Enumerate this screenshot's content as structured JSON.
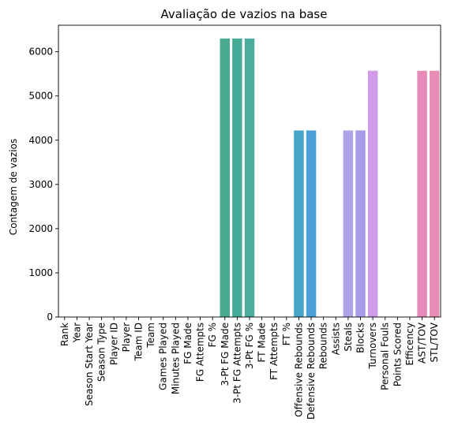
{
  "chart_data": {
    "type": "bar",
    "title": "Avaliação de vazios na base",
    "xlabel": "",
    "ylabel": "Contagem de vazios",
    "ylim": [
      0,
      6600
    ],
    "yticks": [
      0,
      1000,
      2000,
      3000,
      4000,
      5000,
      6000
    ],
    "grid": false,
    "legend": "none",
    "categories": [
      "Rank",
      "Year",
      "Season Start Year",
      "Season Type",
      "Player ID",
      "Player",
      "Team ID",
      "Team",
      "Games Played",
      "Minutes Played",
      "FG Made",
      "FG Attempts",
      "FG %",
      "3-Pt FG Made",
      "3-Pt FG Attempts",
      "3-Pt FG %",
      "FT Made",
      "FT Attempts",
      "FT %",
      "Offensive Rebounds",
      "Defensive Rebounds",
      "Rebounds",
      "Assists",
      "Steals",
      "Blocks",
      "Turnovers",
      "Personal Fouls",
      "Points Scored",
      "Efficency",
      "AST/TOV",
      "STL/TOV"
    ],
    "values": [
      0,
      0,
      0,
      0,
      0,
      0,
      0,
      0,
      0,
      0,
      0,
      0,
      0,
      6300,
      6300,
      6300,
      0,
      0,
      0,
      4220,
      4220,
      0,
      0,
      4220,
      4220,
      5570,
      0,
      0,
      0,
      5570,
      5570
    ],
    "colors": [
      "#f77189",
      "#f7754f",
      "#e1822f",
      "#cc8e32",
      "#bb9832",
      "#aa9e32",
      "#97a431",
      "#7fab31",
      "#50b131",
      "#32b166",
      "#34ae8a",
      "#35ac9c",
      "#36aaa8",
      "#4bab8e",
      "#46ab96",
      "#4aad9e",
      "#38a9c5",
      "#39a7d0",
      "#3ba3e0",
      "#47a5cc",
      "#4a9fd9",
      "#7d9ef5",
      "#9d98f5",
      "#b0a4e6",
      "#a79ce9",
      "#d199ea",
      "#f061dd",
      "#f461c8",
      "#f566b9",
      "#e68bb9",
      "#e88bb5"
    ]
  }
}
